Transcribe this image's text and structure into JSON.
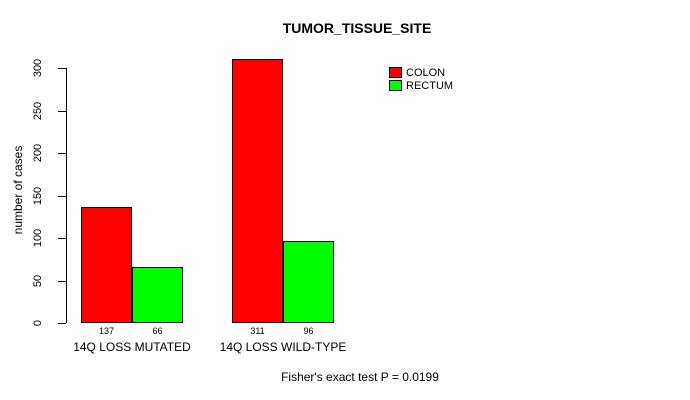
{
  "chart_data": {
    "type": "bar",
    "title": "TUMOR_TISSUE_SITE",
    "xlabel": "",
    "ylabel": "number of cases",
    "categories": [
      "14Q LOSS MUTATED",
      "14Q LOSS WILD-TYPE"
    ],
    "series": [
      {
        "name": "COLON",
        "color": "#FF0000",
        "values": [
          137,
          311
        ]
      },
      {
        "name": "RECTUM",
        "color": "#00FF00",
        "values": [
          66,
          96
        ]
      }
    ],
    "bar_value_labels": [
      [
        137,
        66
      ],
      [
        311,
        96
      ]
    ],
    "yticks": [
      0,
      50,
      100,
      150,
      200,
      250,
      300
    ],
    "ylim": [
      0,
      311
    ],
    "grid": false,
    "legend_position": "top-right",
    "legend_entries": [
      "COLON",
      "RECTUM"
    ],
    "annotation": "Fisher's exact test P = 0.0199",
    "colors": {
      "background": "#FFFFFF",
      "axis": "#000000",
      "text": "#000000",
      "colon": "#FF0000",
      "rectum": "#00FF00"
    }
  }
}
